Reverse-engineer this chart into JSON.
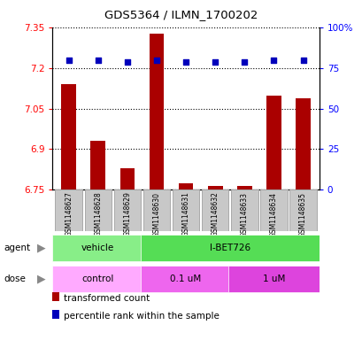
{
  "title": "GDS5364 / ILMN_1700202",
  "samples": [
    "GSM1148627",
    "GSM1148628",
    "GSM1148629",
    "GSM1148630",
    "GSM1148631",
    "GSM1148632",
    "GSM1148633",
    "GSM1148634",
    "GSM1148635"
  ],
  "transformed_count": [
    7.14,
    6.93,
    6.83,
    7.33,
    6.775,
    6.765,
    6.765,
    7.1,
    7.09
  ],
  "percentile_rank": [
    80,
    80,
    79,
    80,
    79,
    79,
    79,
    80,
    80
  ],
  "ylim_left": [
    6.75,
    7.35
  ],
  "ylim_right": [
    0,
    100
  ],
  "yticks_left": [
    6.75,
    6.9,
    7.05,
    7.2,
    7.35
  ],
  "yticks_right": [
    0,
    25,
    50,
    75,
    100
  ],
  "ytick_labels_left": [
    "6.75",
    "6.9",
    "7.05",
    "7.2",
    "7.35"
  ],
  "ytick_labels_right": [
    "0",
    "25",
    "50",
    "75",
    "100%"
  ],
  "bar_color": "#AA0000",
  "dot_color": "#0000BB",
  "agent_groups": [
    {
      "label": "vehicle",
      "start": 0,
      "end": 3,
      "color": "#88EE88"
    },
    {
      "label": "I-BET726",
      "start": 3,
      "end": 9,
      "color": "#55DD55"
    }
  ],
  "dose_groups": [
    {
      "label": "control",
      "start": 0,
      "end": 3,
      "color": "#FFAAFF"
    },
    {
      "label": "0.1 uM",
      "start": 3,
      "end": 6,
      "color": "#EE66EE"
    },
    {
      "label": "1 uM",
      "start": 6,
      "end": 9,
      "color": "#DD44DD"
    }
  ],
  "background_color": "#ffffff",
  "bar_width": 0.5,
  "sample_box_color": "#C8C8C8",
  "sample_box_edge": "#AAAAAA"
}
